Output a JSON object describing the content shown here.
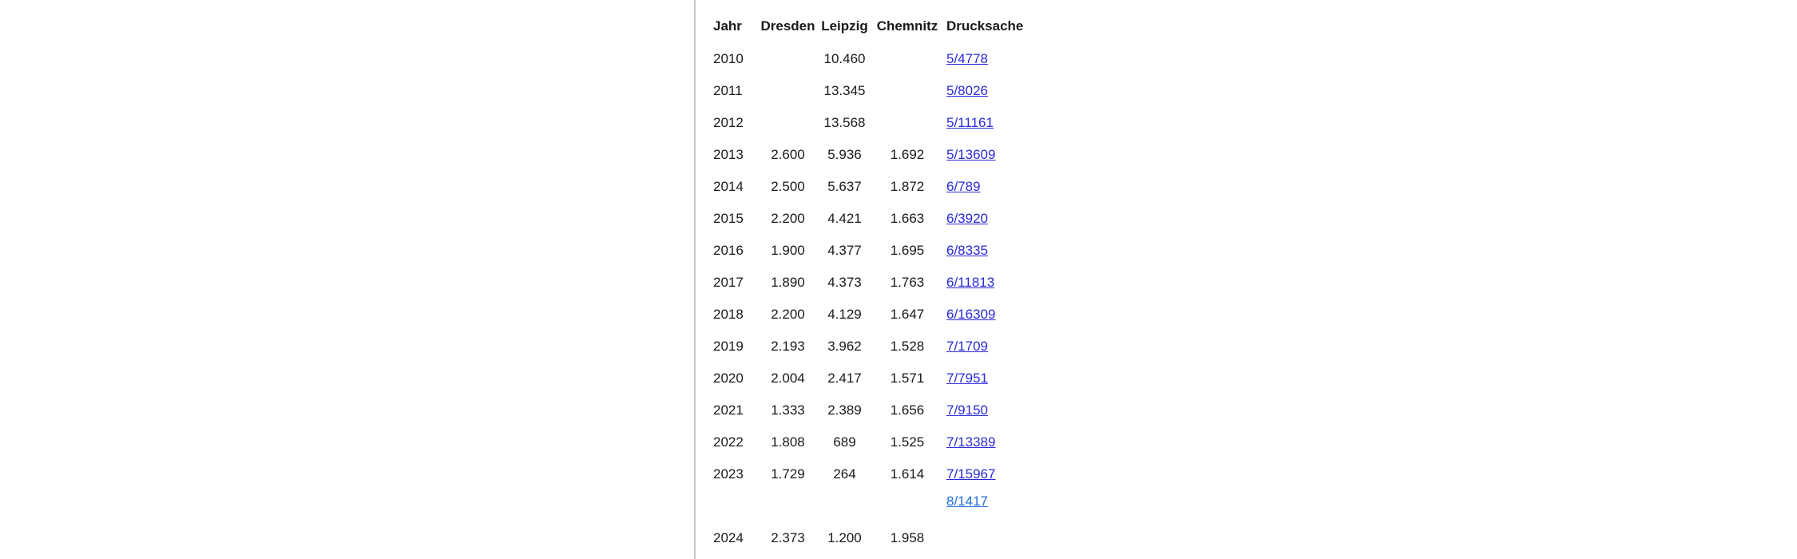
{
  "table": {
    "headers": [
      "Jahr",
      "Dresden",
      "Leipzig",
      "Chemnitz",
      "Drucksache"
    ],
    "rows": [
      {
        "jahr": "2010",
        "dresden": "",
        "leipzig": "10.460",
        "chemnitz": "",
        "drucksache": "5/4778"
      },
      {
        "jahr": "2011",
        "dresden": "",
        "leipzig": "13.345",
        "chemnitz": "",
        "drucksache": "5/8026"
      },
      {
        "jahr": "2012",
        "dresden": "",
        "leipzig": "13.568",
        "chemnitz": "",
        "drucksache": "5/11161"
      },
      {
        "jahr": "2013",
        "dresden": "2.600",
        "leipzig": "5.936",
        "chemnitz": "1.692",
        "drucksache": "5/13609"
      },
      {
        "jahr": "2014",
        "dresden": "2.500",
        "leipzig": "5.637",
        "chemnitz": "1.872",
        "drucksache": "6/789"
      },
      {
        "jahr": "2015",
        "dresden": "2.200",
        "leipzig": "4.421",
        "chemnitz": "1.663",
        "drucksache": "6/3920"
      },
      {
        "jahr": "2016",
        "dresden": "1.900",
        "leipzig": "4.377",
        "chemnitz": "1.695",
        "drucksache": "6/8335"
      },
      {
        "jahr": "2017",
        "dresden": "1.890",
        "leipzig": "4.373",
        "chemnitz": "1.763",
        "drucksache": "6/11813"
      },
      {
        "jahr": "2018",
        "dresden": "2.200",
        "leipzig": "4.129",
        "chemnitz": "1.647",
        "drucksache": "6/16309"
      },
      {
        "jahr": "2019",
        "dresden": "2.193",
        "leipzig": "3.962",
        "chemnitz": "1.528",
        "drucksache": "7/1709"
      },
      {
        "jahr": "2020",
        "dresden": "2.004",
        "leipzig": "2.417",
        "chemnitz": "1.571",
        "drucksache": "7/7951"
      },
      {
        "jahr": "2021",
        "dresden": "1.333",
        "leipzig": "2.389",
        "chemnitz": "1.656",
        "drucksache": "7/9150"
      },
      {
        "jahr": "2022",
        "dresden": "1.808",
        "leipzig": "689",
        "chemnitz": "1.525",
        "drucksache": "7/13389"
      },
      {
        "jahr": "2023",
        "dresden": "1.729",
        "leipzig": "264",
        "chemnitz": "1.614",
        "drucksache": "7/15967"
      },
      {
        "jahr": "2024",
        "dresden": "2.373",
        "leipzig": "1.200",
        "chemnitz": "1.958",
        "drucksache": "8/1417"
      }
    ]
  },
  "colors": {
    "link": "#2a2adb",
    "link_latest": "#1e6fd9",
    "divider": "#c8c8c8"
  }
}
